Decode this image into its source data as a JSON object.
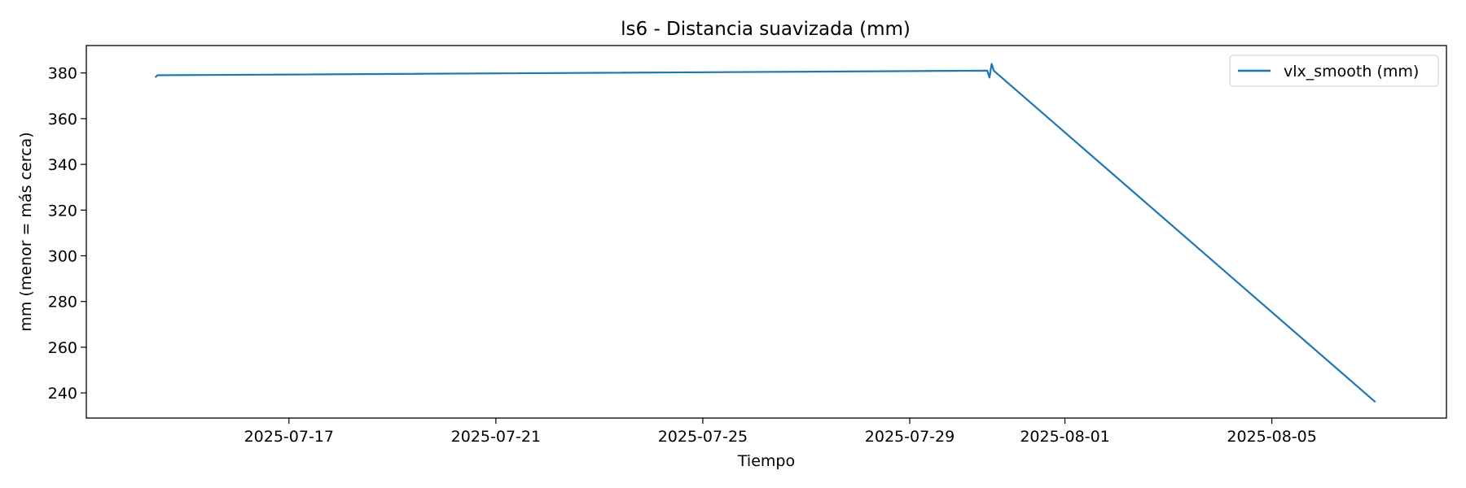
{
  "chart_data": {
    "type": "line",
    "title": "ls6 - Distancia suavizada (mm)",
    "xlabel": "Tiempo",
    "ylabel": "mm (menor = más cerca)",
    "xlim": [
      "2025-07-13T02:00",
      "2025-08-08T09:00"
    ],
    "ylim": [
      229,
      392
    ],
    "x_ticks": [
      "2025-07-17",
      "2025-07-21",
      "2025-07-25",
      "2025-07-29",
      "2025-08-01",
      "2025-08-05"
    ],
    "y_ticks": [
      240,
      260,
      280,
      300,
      320,
      340,
      360,
      380
    ],
    "grid": false,
    "legend": "top-right",
    "series": [
      {
        "name": "vlx_smooth (mm)",
        "color": "#1f77b4",
        "points": [
          [
            "2025-07-14T10:00",
            378
          ],
          [
            "2025-07-14T11:00",
            379
          ],
          [
            "2025-07-30T12:00",
            381
          ],
          [
            "2025-07-30T13:00",
            378
          ],
          [
            "2025-07-30T14:00",
            384
          ],
          [
            "2025-07-30T15:00",
            381
          ],
          [
            "2025-08-07T00:00",
            236
          ]
        ]
      }
    ]
  }
}
